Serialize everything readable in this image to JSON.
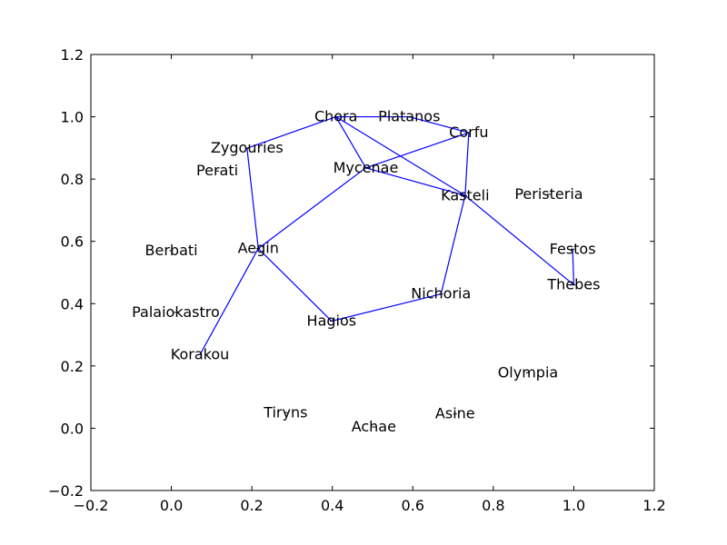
{
  "chart_data": {
    "type": "scatter",
    "title": "",
    "xlabel": "",
    "ylabel": "",
    "xlim": [
      -0.2,
      1.2
    ],
    "ylim": [
      -0.2,
      1.2
    ],
    "xticks": [
      -0.2,
      0.0,
      0.2,
      0.4,
      0.6,
      0.8,
      1.0,
      1.2
    ],
    "yticks": [
      -0.2,
      0.0,
      0.2,
      0.4,
      0.6,
      0.8,
      1.0,
      1.2
    ],
    "xtick_labels": [
      "−0.2",
      "0.0",
      "0.2",
      "0.4",
      "0.6",
      "0.8",
      "1.0",
      "1.2"
    ],
    "ytick_labels": [
      "−0.2",
      "0.0",
      "0.2",
      "0.4",
      "0.6",
      "0.8",
      "1.0",
      "1.2"
    ],
    "grid": false,
    "edge_color": "#0000ff",
    "point_color": "#000000",
    "nodes": [
      {
        "name": "Chora",
        "x": 0.409,
        "y": 1.0
      },
      {
        "name": "Platanos",
        "x": 0.591,
        "y": 1.0
      },
      {
        "name": "Corfu",
        "x": 0.739,
        "y": 0.949
      },
      {
        "name": "Zygouries",
        "x": 0.188,
        "y": 0.899
      },
      {
        "name": "Perati",
        "x": 0.114,
        "y": 0.826
      },
      {
        "name": "Mycenae",
        "x": 0.483,
        "y": 0.836
      },
      {
        "name": "Kasteli",
        "x": 0.73,
        "y": 0.747
      },
      {
        "name": "Peristeria",
        "x": 0.938,
        "y": 0.751
      },
      {
        "name": "Berbati",
        "x": 0.0,
        "y": 0.57
      },
      {
        "name": "Aegin",
        "x": 0.216,
        "y": 0.577
      },
      {
        "name": "Festos",
        "x": 0.997,
        "y": 0.575
      },
      {
        "name": "Thebes",
        "x": 1.0,
        "y": 0.46
      },
      {
        "name": "Nichoria",
        "x": 0.67,
        "y": 0.431
      },
      {
        "name": "Palaiokastro",
        "x": 0.011,
        "y": 0.372
      },
      {
        "name": "Hagios",
        "x": 0.398,
        "y": 0.344
      },
      {
        "name": "Korakou",
        "x": 0.071,
        "y": 0.236
      },
      {
        "name": "Olympia",
        "x": 0.886,
        "y": 0.178
      },
      {
        "name": "Tiryns",
        "x": 0.284,
        "y": 0.05
      },
      {
        "name": "Asine",
        "x": 0.705,
        "y": 0.046
      },
      {
        "name": "Achae",
        "x": 0.503,
        "y": 0.004
      }
    ],
    "edges": [
      [
        "Chora",
        "Platanos"
      ],
      [
        "Platanos",
        "Corfu"
      ],
      [
        "Chora",
        "Zygouries"
      ],
      [
        "Chora",
        "Mycenae"
      ],
      [
        "Chora",
        "Kasteli"
      ],
      [
        "Corfu",
        "Mycenae"
      ],
      [
        "Corfu",
        "Kasteli"
      ],
      [
        "Mycenae",
        "Kasteli"
      ],
      [
        "Mycenae",
        "Aegin"
      ],
      [
        "Zygouries",
        "Aegin"
      ],
      [
        "Aegin",
        "Korakou"
      ],
      [
        "Aegin",
        "Hagios"
      ],
      [
        "Hagios",
        "Nichoria"
      ],
      [
        "Nichoria",
        "Kasteli"
      ],
      [
        "Kasteli",
        "Thebes"
      ],
      [
        "Festos",
        "Thebes"
      ]
    ]
  }
}
